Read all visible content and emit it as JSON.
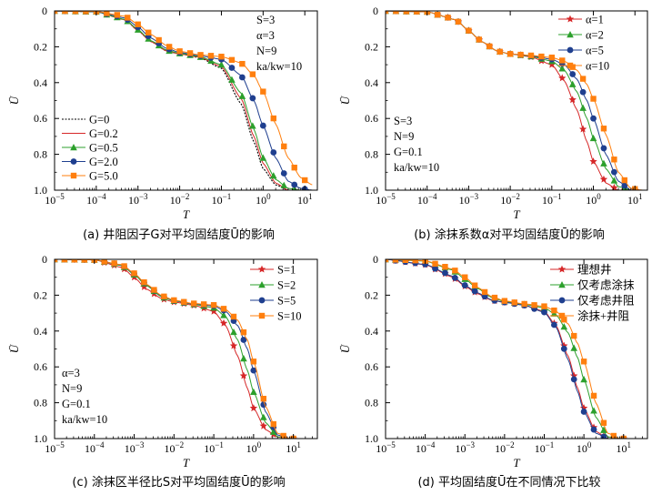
{
  "chart_data": [
    {
      "type": "line",
      "caption": "(a) 井阻因子G对平均固结度Ū的影响",
      "xlabel": "T",
      "ylabel": "Ū",
      "xlog": true,
      "xlim": [
        1e-05,
        20
      ],
      "ylim": [
        0,
        1.0
      ],
      "y_inverted": true,
      "xtick_labels": [
        "10-5",
        "10-4",
        "10-3",
        "10-2",
        "10-1",
        "100",
        "101"
      ],
      "ytick_labels": [
        "0",
        "0.2",
        "0.4",
        "0.6",
        "0.8",
        "1.0"
      ],
      "annotation": [
        "S=3",
        "α=3",
        "N=9",
        "ka/kw=10"
      ],
      "legend_position": "bottom-left",
      "series": [
        {
          "name": "G=0",
          "style": "dotted",
          "marker": "none",
          "color": "#000000",
          "x": [
            1e-05,
            0.0001,
            0.0005,
            0.001,
            0.002,
            0.005,
            0.01,
            0.03,
            0.1,
            0.3,
            0.6,
            1,
            2,
            4,
            8,
            15
          ],
          "y": [
            0,
            0.005,
            0.05,
            0.11,
            0.17,
            0.225,
            0.24,
            0.26,
            0.32,
            0.52,
            0.73,
            0.88,
            0.97,
            1.0,
            1.0,
            1.0
          ]
        },
        {
          "name": "G=0.2",
          "style": "solid",
          "marker": "none",
          "color": "#d62728",
          "x": [
            1e-05,
            0.0001,
            0.0005,
            0.001,
            0.002,
            0.005,
            0.01,
            0.03,
            0.1,
            0.3,
            0.6,
            1,
            2,
            4,
            8,
            15
          ],
          "y": [
            0,
            0.005,
            0.05,
            0.11,
            0.17,
            0.225,
            0.24,
            0.258,
            0.31,
            0.49,
            0.7,
            0.85,
            0.96,
            1.0,
            1.0,
            1.0
          ]
        },
        {
          "name": "G=0.5",
          "style": "solid",
          "marker": "triangle",
          "color": "#2ca02c",
          "x": [
            1e-05,
            0.0001,
            0.0005,
            0.001,
            0.002,
            0.005,
            0.01,
            0.03,
            0.1,
            0.3,
            0.6,
            1,
            2,
            4,
            8,
            15
          ],
          "y": [
            0,
            0.005,
            0.048,
            0.105,
            0.165,
            0.22,
            0.237,
            0.255,
            0.3,
            0.46,
            0.66,
            0.82,
            0.94,
            0.99,
            1.0,
            1.0
          ]
        },
        {
          "name": "G=2.0",
          "style": "solid",
          "marker": "circle",
          "color": "#1f3f8f",
          "x": [
            1e-05,
            0.0001,
            0.0005,
            0.001,
            0.002,
            0.005,
            0.01,
            0.03,
            0.1,
            0.3,
            0.6,
            1,
            2,
            4,
            8,
            15
          ],
          "y": [
            0,
            0.004,
            0.04,
            0.09,
            0.15,
            0.21,
            0.232,
            0.25,
            0.27,
            0.36,
            0.5,
            0.64,
            0.82,
            0.95,
            0.99,
            1.0
          ]
        },
        {
          "name": "G=5.0",
          "style": "solid",
          "marker": "square",
          "color": "#ff7f0e",
          "x": [
            1e-05,
            0.0001,
            0.0005,
            0.001,
            0.002,
            0.005,
            0.01,
            0.03,
            0.1,
            0.3,
            0.6,
            1,
            2,
            4,
            8,
            15
          ],
          "y": [
            0,
            0.003,
            0.03,
            0.075,
            0.13,
            0.195,
            0.225,
            0.245,
            0.255,
            0.29,
            0.36,
            0.45,
            0.63,
            0.82,
            0.93,
            0.97
          ]
        }
      ]
    },
    {
      "type": "line",
      "caption": "(b) 涂抹系数α对平均固结度Ū的影响",
      "xlabel": "T",
      "ylabel": "Ū",
      "xlog": true,
      "xlim": [
        1e-05,
        20
      ],
      "ylim": [
        0,
        1.0
      ],
      "y_inverted": true,
      "xtick_labels": [
        "10-5",
        "10-4",
        "10-3",
        "10-2",
        "10-1",
        "100",
        "101"
      ],
      "ytick_labels": [
        "0",
        "0.2",
        "0.4",
        "0.6",
        "0.8",
        "1.0"
      ],
      "annotation": [
        "S=3",
        "N=9",
        "G=0.1",
        "ka/kw=10"
      ],
      "legend_position": "top-right",
      "series": [
        {
          "name": "α=1",
          "style": "solid",
          "marker": "star",
          "color": "#d62728",
          "x": [
            1e-05,
            0.0001,
            0.0005,
            0.001,
            0.002,
            0.005,
            0.01,
            0.03,
            0.1,
            0.2,
            0.4,
            0.7,
            1,
            2,
            4,
            8,
            15
          ],
          "y": [
            0,
            0.005,
            0.05,
            0.11,
            0.17,
            0.225,
            0.24,
            0.255,
            0.3,
            0.39,
            0.55,
            0.73,
            0.84,
            0.96,
            1.0,
            1.0,
            1.0
          ]
        },
        {
          "name": "α=2",
          "style": "solid",
          "marker": "triangle",
          "color": "#2ca02c",
          "x": [
            1e-05,
            0.0001,
            0.0005,
            0.001,
            0.002,
            0.005,
            0.01,
            0.03,
            0.1,
            0.2,
            0.4,
            0.7,
            1,
            2,
            4,
            8,
            15
          ],
          "y": [
            0,
            0.005,
            0.05,
            0.11,
            0.17,
            0.225,
            0.24,
            0.252,
            0.28,
            0.33,
            0.45,
            0.6,
            0.71,
            0.88,
            0.98,
            1.0,
            1.0
          ]
        },
        {
          "name": "α=5",
          "style": "solid",
          "marker": "circle",
          "color": "#1f3f8f",
          "x": [
            1e-05,
            0.0001,
            0.0005,
            0.001,
            0.002,
            0.005,
            0.01,
            0.03,
            0.1,
            0.2,
            0.4,
            0.7,
            1,
            2,
            4,
            8,
            15
          ],
          "y": [
            0,
            0.005,
            0.05,
            0.11,
            0.17,
            0.225,
            0.24,
            0.25,
            0.27,
            0.3,
            0.38,
            0.5,
            0.6,
            0.8,
            0.95,
            1.0,
            1.0
          ]
        },
        {
          "name": "α=10",
          "style": "solid",
          "marker": "square",
          "color": "#ff7f0e",
          "x": [
            1e-05,
            0.0001,
            0.0005,
            0.001,
            0.002,
            0.005,
            0.01,
            0.03,
            0.1,
            0.2,
            0.4,
            0.7,
            1,
            2,
            4,
            8,
            15
          ],
          "y": [
            0,
            0.005,
            0.05,
            0.11,
            0.17,
            0.225,
            0.24,
            0.248,
            0.26,
            0.28,
            0.33,
            0.41,
            0.49,
            0.69,
            0.9,
            0.99,
            1.0
          ]
        }
      ]
    },
    {
      "type": "line",
      "caption": "(c) 涂抹区半径比S对平均固结度Ū的影响",
      "xlabel": "T",
      "ylabel": "Ū",
      "xlog": true,
      "xlim": [
        1e-05,
        40
      ],
      "ylim": [
        0,
        1.0
      ],
      "y_inverted": true,
      "xtick_labels": [
        "10-5",
        "10-4",
        "10-3",
        "10-2",
        "10-1",
        "100",
        "101"
      ],
      "ytick_labels": [
        "0",
        "0.2",
        "0.4",
        "0.6",
        "0.8",
        "1.0"
      ],
      "annotation": [
        "α=3",
        "N=9",
        "G=0.1",
        "ka/kw=10"
      ],
      "legend_position": "top-right",
      "series": [
        {
          "name": "S=1",
          "style": "solid",
          "marker": "star",
          "color": "#d62728",
          "x": [
            1e-05,
            0.0001,
            0.0005,
            0.001,
            0.002,
            0.005,
            0.01,
            0.03,
            0.1,
            0.2,
            0.4,
            0.7,
            1,
            2,
            4,
            8,
            15
          ],
          "y": [
            0,
            0.003,
            0.045,
            0.1,
            0.165,
            0.22,
            0.238,
            0.255,
            0.29,
            0.37,
            0.54,
            0.72,
            0.83,
            0.95,
            0.99,
            1.0,
            1.0
          ]
        },
        {
          "name": "S=2",
          "style": "solid",
          "marker": "triangle",
          "color": "#2ca02c",
          "x": [
            1e-05,
            0.0001,
            0.0005,
            0.001,
            0.002,
            0.005,
            0.01,
            0.03,
            0.1,
            0.2,
            0.4,
            0.7,
            1,
            2,
            4,
            8,
            15
          ],
          "y": [
            0,
            0.003,
            0.035,
            0.085,
            0.145,
            0.21,
            0.232,
            0.25,
            0.27,
            0.32,
            0.45,
            0.62,
            0.74,
            0.91,
            0.99,
            1.0,
            1.0
          ]
        },
        {
          "name": "S=5",
          "style": "solid",
          "marker": "circle",
          "color": "#1f3f8f",
          "x": [
            1e-05,
            0.0001,
            0.0005,
            0.001,
            0.002,
            0.005,
            0.01,
            0.03,
            0.1,
            0.2,
            0.4,
            0.7,
            1,
            2,
            4,
            8,
            15
          ],
          "y": [
            0,
            0.003,
            0.032,
            0.08,
            0.14,
            0.205,
            0.23,
            0.248,
            0.26,
            0.29,
            0.37,
            0.5,
            0.62,
            0.85,
            0.98,
            1.0,
            1.0
          ]
        },
        {
          "name": "S=10",
          "style": "solid",
          "marker": "square",
          "color": "#ff7f0e",
          "x": [
            1e-05,
            0.0001,
            0.0005,
            0.001,
            0.002,
            0.005,
            0.01,
            0.03,
            0.1,
            0.2,
            0.4,
            0.7,
            1,
            2,
            4,
            8,
            15
          ],
          "y": [
            0,
            0.003,
            0.03,
            0.078,
            0.138,
            0.203,
            0.228,
            0.246,
            0.255,
            0.28,
            0.34,
            0.45,
            0.57,
            0.82,
            0.97,
            1.0,
            1.0
          ]
        }
      ]
    },
    {
      "type": "line",
      "caption": "(d) 平均固结度Ū在不同情况下比较",
      "xlabel": "T",
      "ylabel": "Ū",
      "xlog": true,
      "xlim": [
        1e-05,
        40
      ],
      "ylim": [
        0,
        1.0
      ],
      "y_inverted": true,
      "xtick_labels": [
        "10-5",
        "10-4",
        "10-3",
        "10-2",
        "10-1",
        "100",
        "101"
      ],
      "ytick_labels": [
        "0",
        "0.2",
        "0.4",
        "0.6",
        "0.8",
        "1.0"
      ],
      "legend_position": "top-right",
      "series": [
        {
          "name": "理想井",
          "style": "solid",
          "marker": "star",
          "color": "#d62728",
          "x": [
            1e-05,
            0.0001,
            0.0005,
            0.001,
            0.002,
            0.005,
            0.01,
            0.03,
            0.1,
            0.2,
            0.4,
            0.7,
            1,
            2,
            4,
            8,
            15
          ],
          "y": [
            0,
            0.03,
            0.1,
            0.15,
            0.19,
            0.23,
            0.24,
            0.255,
            0.29,
            0.37,
            0.54,
            0.72,
            0.83,
            0.96,
            1.0,
            1.0,
            1.0
          ]
        },
        {
          "name": "仅考虑涂抹",
          "style": "solid",
          "marker": "triangle",
          "color": "#2ca02c",
          "x": [
            1e-05,
            0.0001,
            0.0005,
            0.001,
            0.002,
            0.005,
            0.01,
            0.03,
            0.1,
            0.2,
            0.4,
            0.7,
            1,
            2,
            4,
            8,
            15
          ],
          "y": [
            0,
            0.01,
            0.06,
            0.11,
            0.16,
            0.215,
            0.235,
            0.25,
            0.27,
            0.31,
            0.41,
            0.55,
            0.67,
            0.88,
            0.99,
            1.0,
            1.0
          ]
        },
        {
          "name": "仅考虑井阻",
          "style": "solid",
          "marker": "circle",
          "color": "#1f3f8f",
          "x": [
            1e-05,
            0.0001,
            0.0005,
            0.001,
            0.002,
            0.005,
            0.01,
            0.03,
            0.1,
            0.2,
            0.4,
            0.7,
            1,
            2,
            4,
            8,
            15
          ],
          "y": [
            0,
            0.028,
            0.095,
            0.145,
            0.185,
            0.228,
            0.24,
            0.255,
            0.295,
            0.38,
            0.56,
            0.74,
            0.85,
            0.97,
            1.0,
            1.0,
            1.0
          ]
        },
        {
          "name": "涂抹+井阻",
          "style": "solid",
          "marker": "square",
          "color": "#ff7f0e",
          "x": [
            1e-05,
            0.0001,
            0.0005,
            0.001,
            0.002,
            0.005,
            0.01,
            0.03,
            0.1,
            0.2,
            0.4,
            0.7,
            1,
            2,
            4,
            8,
            15
          ],
          "y": [
            0,
            0.008,
            0.055,
            0.1,
            0.155,
            0.21,
            0.232,
            0.248,
            0.262,
            0.29,
            0.36,
            0.47,
            0.57,
            0.8,
            0.97,
            1.0,
            1.0
          ]
        }
      ]
    }
  ]
}
